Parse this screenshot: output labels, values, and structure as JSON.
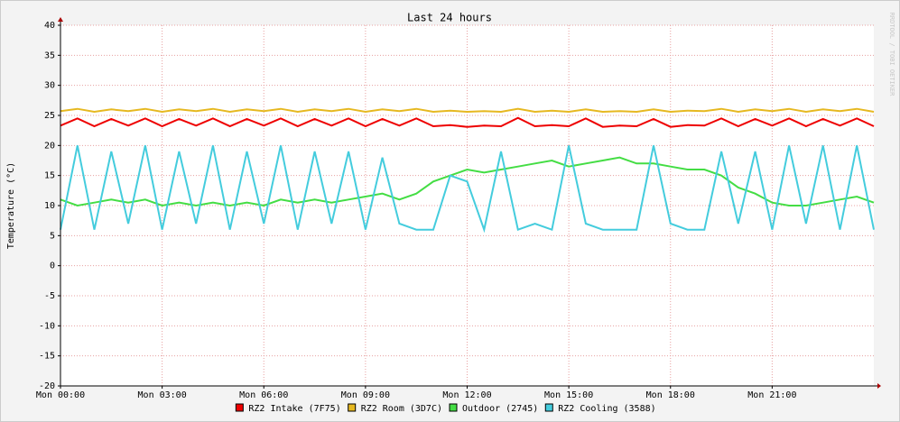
{
  "chart_data": {
    "type": "line",
    "title": "Last 24 hours",
    "y_label": "Temperature (°C)",
    "watermark": "RRDTOOL / TOBI OETIKER",
    "x": [
      0,
      0.5,
      1,
      1.5,
      2,
      2.5,
      3,
      3.5,
      4,
      4.5,
      5,
      5.5,
      6,
      6.5,
      7,
      7.5,
      8,
      8.5,
      9,
      9.5,
      10,
      10.5,
      11,
      11.5,
      12,
      12.5,
      13,
      13.5,
      14,
      14.5,
      15,
      15.5,
      16,
      16.5,
      17,
      17.5,
      18,
      18.5,
      19,
      19.5,
      20,
      20.5,
      21,
      21.5,
      22,
      22.5,
      23,
      23.5,
      24
    ],
    "xlim": [
      0,
      24
    ],
    "xticks": [
      {
        "value": 0,
        "label": "Mon 00:00"
      },
      {
        "value": 3,
        "label": "Mon 03:00"
      },
      {
        "value": 6,
        "label": "Mon 06:00"
      },
      {
        "value": 9,
        "label": "Mon 09:00"
      },
      {
        "value": 12,
        "label": "Mon 12:00"
      },
      {
        "value": 15,
        "label": "Mon 15:00"
      },
      {
        "value": 18,
        "label": "Mon 18:00"
      },
      {
        "value": 21,
        "label": "Mon 21:00"
      }
    ],
    "ylim": [
      -20,
      40
    ],
    "yticks": [
      -20,
      -15,
      -10,
      -5,
      0,
      5,
      10,
      15,
      20,
      25,
      30,
      35,
      40
    ],
    "grid": true,
    "series": [
      {
        "name": "RZ2 Intake (7F75)",
        "color": "#ee0000",
        "values": [
          23.3,
          24.5,
          23.2,
          24.4,
          23.3,
          24.5,
          23.2,
          24.4,
          23.3,
          24.5,
          23.2,
          24.4,
          23.3,
          24.5,
          23.2,
          24.4,
          23.3,
          24.5,
          23.2,
          24.4,
          23.3,
          24.5,
          23.2,
          23.4,
          23.1,
          23.3,
          23.2,
          24.6,
          23.2,
          23.4,
          23.2,
          24.5,
          23.1,
          23.3,
          23.2,
          24.4,
          23.1,
          23.4,
          23.3,
          24.5,
          23.2,
          24.4,
          23.3,
          24.5,
          23.2,
          24.4,
          23.3,
          24.5,
          23.2
        ]
      },
      {
        "name": "RZ2 Room (3D7C)",
        "color": "#e6b820",
        "values": [
          25.7,
          26.1,
          25.6,
          26.0,
          25.7,
          26.1,
          25.6,
          26.0,
          25.7,
          26.1,
          25.6,
          26.0,
          25.7,
          26.1,
          25.6,
          26.0,
          25.7,
          26.1,
          25.6,
          26.0,
          25.7,
          26.1,
          25.6,
          25.8,
          25.6,
          25.7,
          25.6,
          26.1,
          25.6,
          25.8,
          25.6,
          26.0,
          25.6,
          25.7,
          25.6,
          26.0,
          25.6,
          25.8,
          25.7,
          26.1,
          25.6,
          26.0,
          25.7,
          26.1,
          25.6,
          26.0,
          25.7,
          26.1,
          25.6
        ]
      },
      {
        "name": "Outdoor (2745)",
        "color": "#44dd44",
        "values": [
          11,
          10,
          10.5,
          11,
          10.5,
          11,
          10,
          10.5,
          10,
          10.5,
          10,
          10.5,
          10,
          11,
          10.5,
          11,
          10.5,
          11,
          11.5,
          12,
          11,
          12,
          14,
          15,
          16,
          15.5,
          16,
          16.5,
          17,
          17.5,
          16.5,
          17,
          17.5,
          18,
          17,
          17,
          16.5,
          16,
          16,
          15,
          13,
          12,
          10.5,
          10,
          10,
          10.5,
          11,
          11.5,
          10.5
        ]
      },
      {
        "name": "RZ2 Cooling (3588)",
        "color": "#44ccdd",
        "values": [
          6,
          20,
          6,
          19,
          7,
          20,
          6,
          19,
          7,
          20,
          6,
          19,
          7,
          20,
          6,
          19,
          7,
          19,
          6,
          18,
          7,
          6,
          6,
          15,
          14,
          6,
          19,
          6,
          7,
          6,
          20,
          7,
          6,
          6,
          6,
          20,
          7,
          6,
          6,
          19,
          7,
          19,
          6,
          20,
          7,
          20,
          6,
          20,
          6
        ]
      }
    ]
  }
}
